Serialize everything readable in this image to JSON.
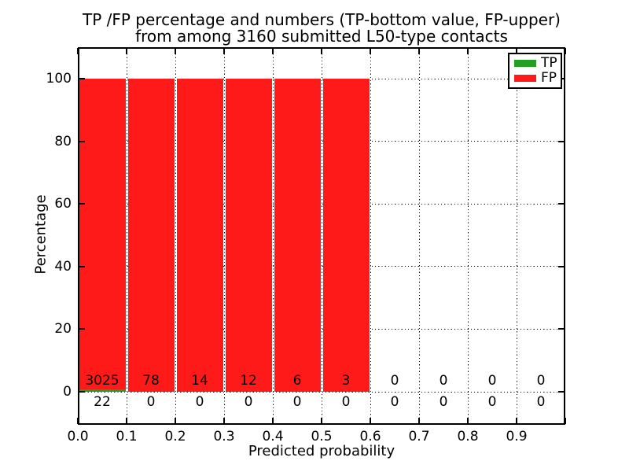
{
  "figure": {
    "title_line1": "TP /FP percentage and numbers (TP-bottom value, FP-upper)",
    "title_line2": "from among 3160 submitted L50-type contacts"
  },
  "chart_data": {
    "type": "bar",
    "subtype": "stacked-percentage-histogram",
    "title": "TP /FP percentage and numbers (TP-bottom value, FP-upper) from among 3160 submitted L50-type contacts",
    "xlabel": "Predicted probability",
    "ylabel": "Percentage",
    "x_tick_labels": [
      "0.0",
      "0.1",
      "0.2",
      "0.3",
      "0.4",
      "0.5",
      "0.6",
      "0.7",
      "0.8",
      "0.9"
    ],
    "y_ticks": [
      0,
      20,
      40,
      60,
      80,
      100
    ],
    "xlim": [
      0.0,
      1.0
    ],
    "ylim": [
      -10.5,
      110.3
    ],
    "grid": "dotted black, both axes",
    "legend_position": "upper-right",
    "legend": {
      "entries": [
        {
          "label": "TP",
          "color": "#22a022"
        },
        {
          "label": "FP",
          "color": "#ff1a1a"
        }
      ]
    },
    "total_contacts": 3160,
    "bins": [
      {
        "range": [
          0.0,
          0.1
        ],
        "tp_count": 22,
        "fp_count": 3025,
        "tp_pct": 0.72,
        "fp_pct": 99.28
      },
      {
        "range": [
          0.1,
          0.2
        ],
        "tp_count": 0,
        "fp_count": 78,
        "tp_pct": 0,
        "fp_pct": 100
      },
      {
        "range": [
          0.2,
          0.3
        ],
        "tp_count": 0,
        "fp_count": 14,
        "tp_pct": 0,
        "fp_pct": 100
      },
      {
        "range": [
          0.3,
          0.4
        ],
        "tp_count": 0,
        "fp_count": 12,
        "tp_pct": 0,
        "fp_pct": 100
      },
      {
        "range": [
          0.4,
          0.5
        ],
        "tp_count": 0,
        "fp_count": 6,
        "tp_pct": 0,
        "fp_pct": 100
      },
      {
        "range": [
          0.5,
          0.6
        ],
        "tp_count": 0,
        "fp_count": 3,
        "tp_pct": 0,
        "fp_pct": 100
      },
      {
        "range": [
          0.6,
          0.7
        ],
        "tp_count": 0,
        "fp_count": 0,
        "tp_pct": 0,
        "fp_pct": 0
      },
      {
        "range": [
          0.7,
          0.8
        ],
        "tp_count": 0,
        "fp_count": 0,
        "tp_pct": 0,
        "fp_pct": 0
      },
      {
        "range": [
          0.8,
          0.9
        ],
        "tp_count": 0,
        "fp_count": 0,
        "tp_pct": 0,
        "fp_pct": 0
      },
      {
        "range": [
          0.9,
          1.0
        ],
        "tp_count": 0,
        "fp_count": 0,
        "tp_pct": 0,
        "fp_pct": 0
      }
    ],
    "colors": {
      "tp": "#22a022",
      "fp": "#ff1a1a",
      "grid": "#000000",
      "axis": "#000000",
      "background": "#ffffff",
      "text": "#000000"
    }
  }
}
